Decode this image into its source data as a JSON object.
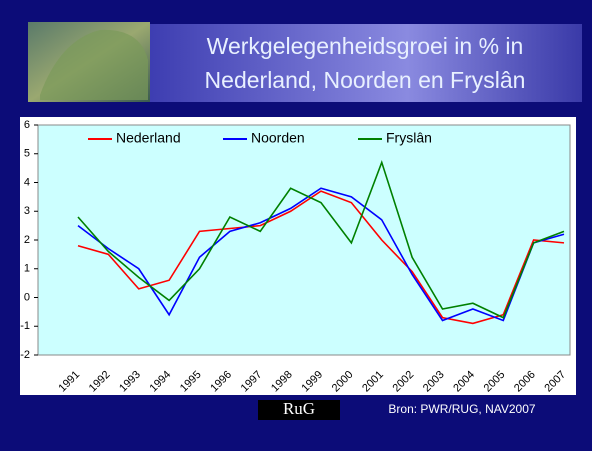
{
  "chart_data": {
    "type": "line",
    "title": [
      "Werkgelegenheidsgroei in % in",
      "Nederland, Noorden en Fryslân"
    ],
    "categories": [
      "1991",
      "1992",
      "1993",
      "1994",
      "1995",
      "1996",
      "1997",
      "1998",
      "1999",
      "2000",
      "2001",
      "2002",
      "2003",
      "2004",
      "2005",
      "2006",
      "2007"
    ],
    "series": [
      {
        "name": "Nederland",
        "color": "#ff0000",
        "values": [
          1.8,
          1.5,
          0.3,
          0.6,
          2.3,
          2.4,
          2.5,
          3.0,
          3.7,
          3.3,
          2.0,
          0.9,
          -0.7,
          -0.9,
          -0.6,
          2.0,
          1.9
        ]
      },
      {
        "name": "Noorden",
        "color": "#0000ff",
        "values": [
          2.5,
          1.7,
          1.0,
          -0.6,
          1.4,
          2.3,
          2.6,
          3.1,
          3.8,
          3.5,
          2.7,
          0.8,
          -0.8,
          -0.4,
          -0.8,
          1.9,
          2.2
        ]
      },
      {
        "name": "Fryslân",
        "color": "#008000",
        "values": [
          2.8,
          1.6,
          0.7,
          -0.1,
          1.0,
          2.8,
          2.3,
          3.8,
          3.3,
          1.9,
          4.7,
          1.4,
          -0.4,
          -0.2,
          -0.7,
          1.9,
          2.3
        ]
      }
    ],
    "ylim": [
      -2,
      6
    ],
    "yticks": [
      -2,
      -1,
      0,
      1,
      2,
      3,
      4,
      5,
      6
    ],
    "legend": "top"
  },
  "logo": "RuG",
  "source": "Bron: PWR/RUG, NAV2007"
}
